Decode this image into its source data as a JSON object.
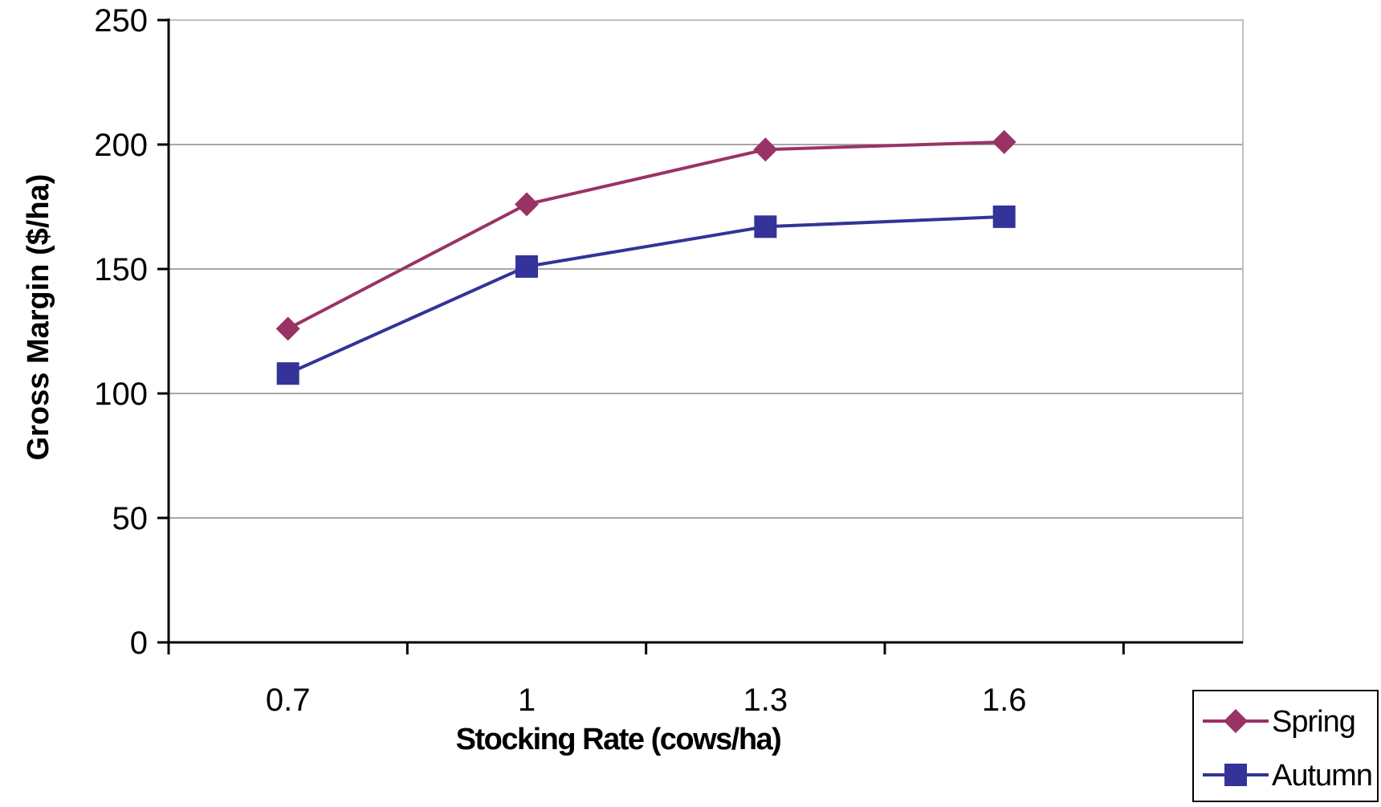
{
  "chart_data": {
    "type": "line",
    "x": [
      0.7,
      1,
      1.3,
      1.6
    ],
    "x_tick_labels": [
      "0.7",
      "1",
      "1.3",
      "1.6"
    ],
    "xlabel": "Stocking Rate (cows/ha)",
    "ylabel": "Gross Margin ($/ha)",
    "ylim": [
      0,
      250
    ],
    "y_ticks": [
      0,
      50,
      100,
      150,
      200,
      250
    ],
    "y_tick_labels": [
      "0",
      "50",
      "100",
      "150",
      "200",
      "250"
    ],
    "grid": true,
    "legend_position": "bottom-right",
    "series": [
      {
        "name": "Spring",
        "values": [
          126,
          176,
          198,
          201
        ],
        "color": "#993366",
        "marker": "diamond"
      },
      {
        "name": "Autumn",
        "values": [
          108,
          151,
          167,
          171
        ],
        "color": "#333399",
        "marker": "square"
      }
    ]
  }
}
